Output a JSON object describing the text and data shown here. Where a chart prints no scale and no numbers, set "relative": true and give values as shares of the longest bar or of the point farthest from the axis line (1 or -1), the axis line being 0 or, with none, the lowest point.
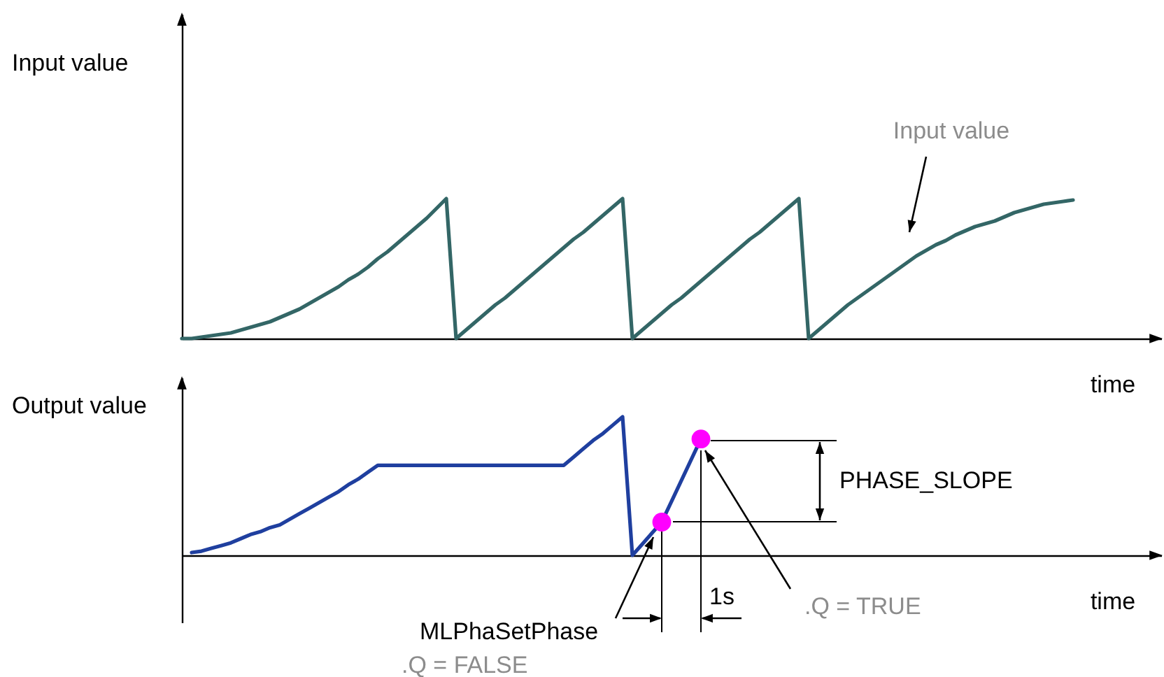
{
  "chart_data": [
    {
      "type": "line",
      "relative": true,
      "ylabel": "Input value",
      "xlabel": "time",
      "categories": [
        null,
        null,
        null,
        null,
        null,
        null,
        null,
        null,
        null,
        null,
        null,
        null,
        null,
        null,
        null,
        null,
        null,
        null,
        null,
        null,
        null,
        null,
        null,
        null,
        null,
        null,
        null,
        null,
        null,
        null,
        null,
        null,
        null,
        null,
        null,
        null,
        null,
        null,
        null,
        null,
        null,
        null,
        null,
        null,
        null,
        null,
        null,
        null,
        null,
        null,
        null,
        null,
        null,
        null,
        null,
        null,
        null,
        null,
        null,
        null,
        null,
        null,
        null,
        null,
        null,
        null,
        null,
        null,
        null,
        null,
        null,
        null,
        null,
        null,
        null,
        null,
        null,
        null,
        null,
        null,
        null,
        null,
        null,
        null,
        null,
        null,
        null,
        null,
        null,
        null,
        null,
        null,
        null,
        null,
        null,
        null,
        null,
        null,
        null,
        null,
        null
      ],
      "series": [
        {
          "color": "#336666",
          "values": [
            0,
            0,
            0.01,
            0.02,
            0.03,
            0.04,
            0.06,
            0.08,
            0.1,
            0.12,
            0.15,
            0.18,
            0.21,
            0.25,
            0.29,
            0.33,
            0.37,
            0.42,
            0.46,
            0.51,
            0.57,
            0.62,
            0.68,
            0.74,
            0.8,
            0.86,
            0.93,
            1,
            0,
            0.06,
            0.12,
            0.18,
            0.24,
            0.29,
            0.35,
            0.41,
            0.47,
            0.53,
            0.59,
            0.65,
            0.71,
            0.76,
            0.82,
            0.88,
            0.94,
            1,
            0,
            0.06,
            0.12,
            0.18,
            0.24,
            0.29,
            0.35,
            0.41,
            0.47,
            0.53,
            0.59,
            0.65,
            0.71,
            0.76,
            0.82,
            0.88,
            0.94,
            1,
            0,
            0.06,
            0.12,
            0.18,
            0.24,
            0.29,
            0.34,
            0.39,
            0.44,
            0.49,
            0.54,
            0.59,
            0.63,
            0.67,
            0.7,
            0.74,
            0.77,
            0.8,
            0.82,
            0.84,
            0.87,
            0.9,
            0.92,
            0.94,
            0.96,
            0.97,
            0.98,
            0.99,
            null,
            null,
            null,
            null,
            null,
            null,
            null,
            null,
            null
          ]
        }
      ],
      "annotations": [
        "Input value"
      ]
    },
    {
      "type": "line",
      "relative": true,
      "ylabel": "Output value",
      "xlabel": "time",
      "categories": [
        null,
        null,
        null,
        null,
        null,
        null,
        null,
        null,
        null,
        null,
        null,
        null,
        null,
        null,
        null,
        null,
        null,
        null,
        null,
        null,
        null,
        null,
        null,
        null,
        null,
        null,
        null,
        null,
        null,
        null,
        null,
        null,
        null,
        null,
        null,
        null,
        null,
        null,
        null,
        null,
        null,
        null,
        null,
        null,
        null,
        null,
        null,
        null,
        null,
        null,
        null,
        null,
        null,
        null,
        null,
        null,
        null,
        null,
        null,
        null,
        null,
        null,
        null,
        null,
        null,
        null,
        null,
        null,
        null,
        null,
        null,
        null,
        null,
        null,
        null,
        null,
        null,
        null,
        null,
        null,
        null,
        null,
        null,
        null,
        null,
        null,
        null,
        null,
        null,
        null,
        null,
        null,
        null,
        null,
        null,
        null,
        null,
        null,
        null,
        null,
        null
      ],
      "series": [
        {
          "color": "#1f3f9f",
          "values": [
            null,
            0.02,
            0.03,
            0.05,
            0.07,
            0.09,
            0.12,
            0.15,
            0.17,
            0.2,
            0.22,
            0.26,
            0.3,
            0.34,
            0.38,
            0.42,
            0.46,
            0.51,
            0.55,
            0.6,
            0.65,
            0.65,
            0.65,
            0.65,
            0.65,
            0.65,
            0.65,
            0.65,
            0.65,
            0.65,
            0.65,
            0.65,
            0.65,
            0.65,
            0.65,
            0.65,
            0.65,
            0.65,
            0.65,
            0.65,
            0.71,
            0.77,
            0.83,
            0.88,
            0.94,
            1,
            0,
            0.08,
            0.16,
            0.24,
            0.39,
            0.54,
            0.69,
            0.84,
            null,
            null,
            null,
            null,
            null,
            null,
            null,
            null,
            null,
            null,
            null,
            null,
            null,
            null,
            null,
            null,
            null,
            null,
            null,
            null,
            null,
            null,
            null,
            null,
            null,
            null,
            null,
            null,
            null,
            null,
            null,
            null,
            null,
            null,
            null,
            null,
            null,
            null,
            null,
            null,
            null,
            null,
            null,
            null,
            null,
            null,
            null
          ]
        },
        {
          "type": "scatter",
          "marker": "circle",
          "color": "#ff00ff",
          "values": [
            null,
            null,
            null,
            null,
            null,
            null,
            null,
            null,
            null,
            null,
            null,
            null,
            null,
            null,
            null,
            null,
            null,
            null,
            null,
            null,
            null,
            null,
            null,
            null,
            null,
            null,
            null,
            null,
            null,
            null,
            null,
            null,
            null,
            null,
            null,
            null,
            null,
            null,
            null,
            null,
            null,
            null,
            null,
            null,
            null,
            null,
            null,
            null,
            null,
            0.24,
            null,
            null,
            null,
            0.84,
            null,
            null,
            null,
            null,
            null,
            null,
            null,
            null,
            null,
            null,
            null,
            null,
            null,
            null,
            null,
            null,
            null,
            null,
            null,
            null,
            null,
            null,
            null,
            null,
            null,
            null,
            null,
            null,
            null,
            null,
            null,
            null,
            null,
            null,
            null,
            null,
            null,
            null,
            null,
            null,
            null,
            null,
            null,
            null,
            null,
            null,
            null
          ]
        }
      ],
      "annotations": [
        "PHASE_SLOPE",
        "1s",
        ".Q = TRUE",
        "MLPhaSetPhase",
        ".Q = FALSE"
      ]
    }
  ]
}
